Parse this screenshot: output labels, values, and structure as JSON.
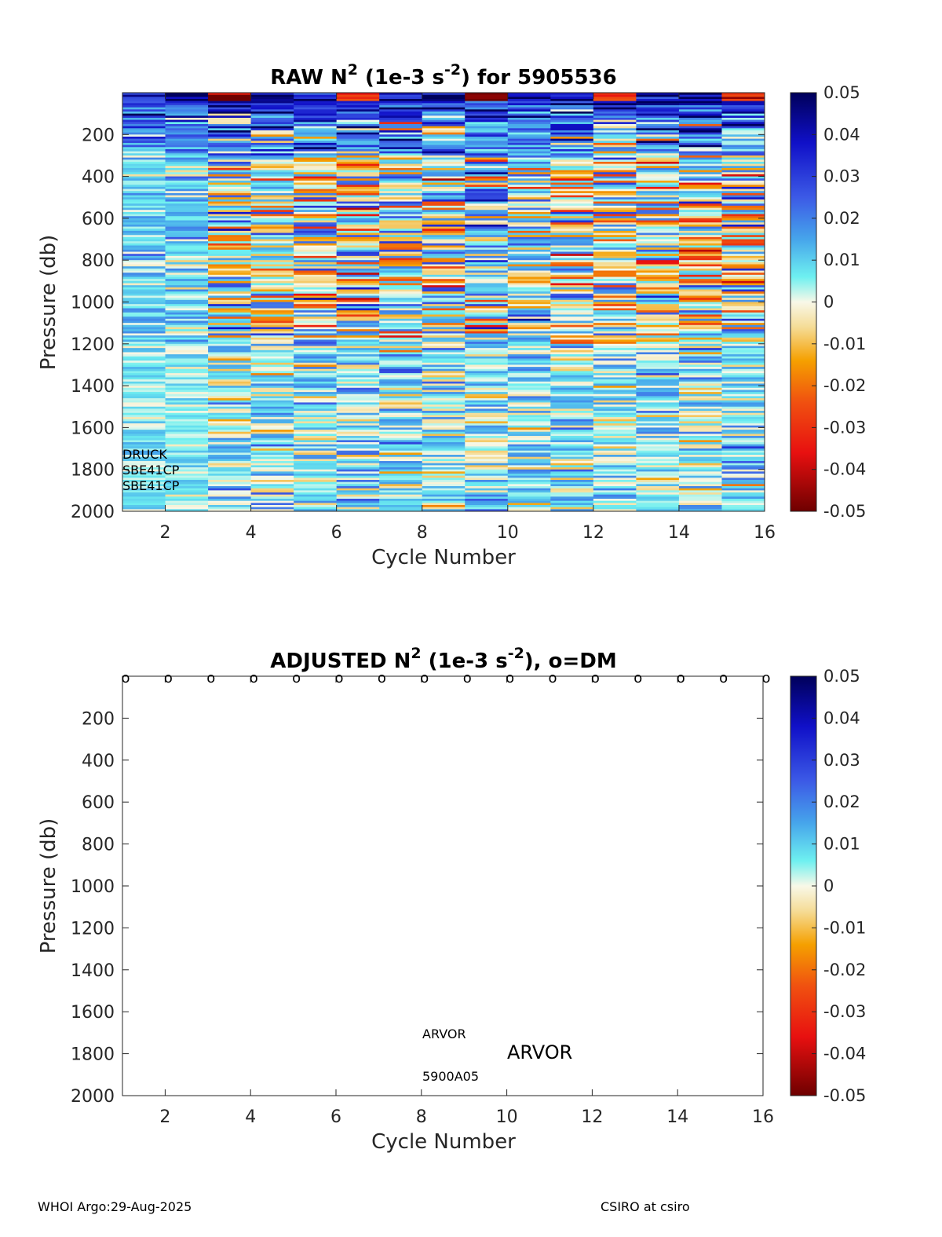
{
  "chart_data": [
    {
      "type": "heatmap",
      "title_main": "RAW N",
      "title_sup1": "2",
      "title_mid": " (1e-3 s",
      "title_sup2": "-2",
      "title_end": ") for 5905536",
      "xlabel": "Cycle Number",
      "ylabel": "Pressure (db)",
      "xlim": [
        1,
        16
      ],
      "ylim": [
        0,
        2000
      ],
      "x_ticks": [
        "2",
        "4",
        "6",
        "8",
        "10",
        "12",
        "14",
        "16"
      ],
      "y_ticks": [
        "200",
        "400",
        "600",
        "800",
        "1000",
        "1200",
        "1400",
        "1600",
        "1800",
        "2000"
      ],
      "cycles": [
        1,
        2,
        3,
        4,
        5,
        6,
        7,
        8,
        9,
        10,
        11,
        12,
        13,
        14,
        15
      ],
      "colorbar": {
        "clim": [
          -0.05,
          0.05
        ],
        "ticks": [
          "0.05",
          "0.04",
          "0.03",
          "0.02",
          "0.01",
          "0",
          "-0.01",
          "-0.02",
          "-0.03",
          "-0.04",
          "-0.05"
        ]
      },
      "annotations": [
        "DRUCK",
        "SBE41CP",
        "SBE41CP"
      ]
    },
    {
      "type": "heatmap",
      "title_main": "ADJUSTED N",
      "title_sup1": "2",
      "title_mid": " (1e-3 s",
      "title_sup2": "-2",
      "title_end": "), o=DM",
      "xlabel": "Cycle Number",
      "ylabel": "Pressure (db)",
      "xlim": [
        1,
        16
      ],
      "ylim": [
        0,
        2000
      ],
      "x_ticks": [
        "2",
        "4",
        "6",
        "8",
        "10",
        "12",
        "14",
        "16"
      ],
      "y_ticks": [
        "200",
        "400",
        "600",
        "800",
        "1000",
        "1200",
        "1400",
        "1600",
        "1800",
        "2000"
      ],
      "dm_marker": "o",
      "dm_cycles": [
        1,
        2,
        3,
        4,
        5,
        6,
        7,
        8,
        9,
        10,
        11,
        12,
        13,
        14,
        15,
        16
      ],
      "colorbar": {
        "clim": [
          -0.05,
          0.05
        ],
        "ticks": [
          "0.05",
          "0.04",
          "0.03",
          "0.02",
          "0.01",
          "0",
          "-0.01",
          "-0.02",
          "-0.03",
          "-0.04",
          "-0.05"
        ]
      },
      "annotations": [
        "ARVOR",
        "ARVOR",
        "5900A05"
      ]
    }
  ],
  "footer": {
    "left": "WHOI Argo:29-Aug-2025",
    "right": "CSIRO at csiro"
  }
}
